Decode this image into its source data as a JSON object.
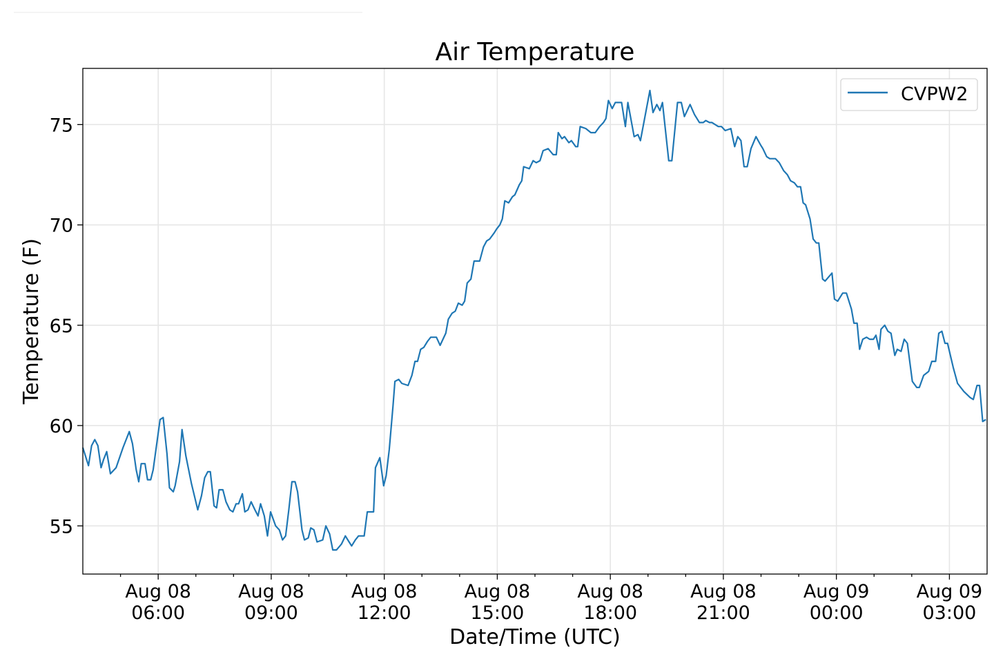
{
  "chart_data": {
    "type": "line",
    "title": "Air Temperature",
    "xlabel": "Date/Time (UTC)",
    "ylabel": "Temperature (F)",
    "x_units": "minutes since Aug 08 04:00 UTC",
    "xlim": [
      0,
      1440
    ],
    "ylim": [
      52.6,
      77.8
    ],
    "grid": true,
    "legend_position": "top-right",
    "x_ticks": [
      {
        "value": 120,
        "line1": "Aug 08",
        "line2": "06:00"
      },
      {
        "value": 300,
        "line1": "Aug 08",
        "line2": "09:00"
      },
      {
        "value": 480,
        "line1": "Aug 08",
        "line2": "12:00"
      },
      {
        "value": 660,
        "line1": "Aug 08",
        "line2": "15:00"
      },
      {
        "value": 840,
        "line1": "Aug 08",
        "line2": "18:00"
      },
      {
        "value": 1020,
        "line1": "Aug 08",
        "line2": "21:00"
      },
      {
        "value": 1200,
        "line1": "Aug 09",
        "line2": "00:00"
      },
      {
        "value": 1380,
        "line1": "Aug 09",
        "line2": "03:00"
      }
    ],
    "y_ticks": [
      {
        "value": 55,
        "label": "55"
      },
      {
        "value": 60,
        "label": "60"
      },
      {
        "value": 65,
        "label": "65"
      },
      {
        "value": 70,
        "label": "70"
      },
      {
        "value": 75,
        "label": "75"
      }
    ],
    "series": [
      {
        "name": "CVPW2",
        "color": "#1f77b4",
        "x": [
          0,
          9,
          14,
          19,
          24,
          29,
          33,
          38,
          44,
          53,
          64,
          74,
          79,
          85,
          89,
          93,
          99,
          103,
          108,
          112,
          123,
          128,
          134,
          138,
          144,
          147,
          154,
          158,
          164,
          173,
          183,
          189,
          194,
          199,
          203,
          209,
          213,
          217,
          223,
          228,
          234,
          239,
          244,
          248,
          254,
          258,
          263,
          268,
          274,
          279,
          283,
          289,
          294,
          299,
          307,
          313,
          318,
          323,
          328,
          333,
          338,
          342,
          349,
          353,
          359,
          363,
          368,
          373,
          382,
          387,
          393,
          398,
          404,
          412,
          418,
          424,
          428,
          434,
          439,
          448,
          453,
          463,
          466,
          473,
          479,
          483,
          488,
          494,
          497,
          503,
          508,
          518,
          524,
          529,
          533,
          538,
          543,
          549,
          554,
          563,
          569,
          578,
          582,
          588,
          593,
          598,
          604,
          608,
          612,
          618,
          623,
          632,
          638,
          643,
          648,
          655,
          659,
          664,
          668,
          672,
          678,
          684,
          688,
          695,
          699,
          702,
          711,
          717,
          722,
          728,
          733,
          741,
          749,
          754,
          757,
          763,
          767,
          774,
          778,
          785,
          788,
          792,
          801,
          809,
          816,
          823,
          829,
          833,
          837,
          843,
          848,
          858,
          864,
          868,
          878,
          884,
          888,
          903,
          908,
          914,
          919,
          923,
          933,
          938,
          947,
          953,
          958,
          967,
          974,
          982,
          988,
          992,
          998,
          1002,
          1012,
          1017,
          1023,
          1032,
          1038,
          1043,
          1048,
          1053,
          1058,
          1064,
          1072,
          1079,
          1083,
          1089,
          1094,
          1103,
          1109,
          1116,
          1122,
          1127,
          1133,
          1138,
          1143,
          1147,
          1151,
          1158,
          1163,
          1168,
          1172,
          1178,
          1182,
          1193,
          1197,
          1202,
          1210,
          1216,
          1224,
          1228,
          1233,
          1237,
          1242,
          1248,
          1253,
          1259,
          1263,
          1268,
          1271,
          1277,
          1282,
          1287,
          1293,
          1297,
          1303,
          1308,
          1313,
          1321,
          1328,
          1332,
          1339,
          1347,
          1352,
          1358,
          1363,
          1368,
          1373,
          1377,
          1386,
          1393,
          1403,
          1413,
          1418,
          1424,
          1428,
          1433,
          1438
        ],
        "y": [
          58.9,
          58.0,
          59.0,
          59.3,
          59.0,
          57.9,
          58.3,
          58.7,
          57.6,
          57.9,
          58.9,
          59.7,
          59.1,
          57.8,
          57.2,
          58.1,
          58.1,
          57.3,
          57.3,
          57.8,
          60.3,
          60.4,
          58.6,
          56.9,
          56.7,
          57.0,
          58.2,
          59.8,
          58.5,
          57.1,
          55.8,
          56.5,
          57.4,
          57.7,
          57.7,
          56.0,
          55.9,
          56.8,
          56.8,
          56.2,
          55.8,
          55.7,
          56.1,
          56.1,
          56.6,
          55.7,
          55.8,
          56.2,
          55.8,
          55.5,
          56.1,
          55.5,
          54.5,
          55.7,
          55.0,
          54.8,
          54.3,
          54.5,
          55.8,
          57.2,
          57.2,
          56.7,
          54.8,
          54.3,
          54.4,
          54.9,
          54.8,
          54.2,
          54.3,
          55.0,
          54.6,
          53.8,
          53.8,
          54.1,
          54.5,
          54.2,
          54.0,
          54.3,
          54.5,
          54.5,
          55.7,
          55.7,
          57.9,
          58.4,
          57.0,
          57.5,
          58.8,
          61.0,
          62.2,
          62.3,
          62.1,
          62.0,
          62.5,
          63.2,
          63.2,
          63.8,
          63.9,
          64.2,
          64.4,
          64.4,
          64.0,
          64.6,
          65.3,
          65.6,
          65.7,
          66.1,
          66.0,
          66.2,
          67.1,
          67.3,
          68.2,
          68.2,
          68.9,
          69.2,
          69.3,
          69.6,
          69.8,
          70.0,
          70.3,
          71.2,
          71.1,
          71.4,
          71.5,
          72.0,
          72.2,
          72.9,
          72.8,
          73.2,
          73.1,
          73.2,
          73.7,
          73.8,
          73.5,
          73.5,
          74.6,
          74.3,
          74.4,
          74.1,
          74.2,
          73.9,
          73.9,
          74.9,
          74.8,
          74.6,
          74.6,
          74.9,
          75.1,
          75.3,
          76.2,
          75.8,
          76.1,
          76.1,
          74.9,
          76.1,
          74.4,
          74.5,
          74.2,
          76.7,
          75.6,
          76.0,
          75.7,
          76.1,
          73.2,
          73.2,
          76.1,
          76.1,
          75.4,
          76.0,
          75.5,
          75.1,
          75.1,
          75.2,
          75.1,
          75.1,
          74.9,
          74.9,
          74.7,
          74.8,
          73.9,
          74.4,
          74.2,
          72.9,
          72.9,
          73.8,
          74.4,
          74.0,
          73.8,
          73.4,
          73.3,
          73.3,
          73.1,
          72.7,
          72.5,
          72.2,
          72.1,
          71.9,
          71.9,
          71.1,
          71.0,
          70.3,
          69.3,
          69.1,
          69.1,
          67.3,
          67.2,
          67.6,
          66.3,
          66.2,
          66.6,
          66.6,
          65.8,
          65.1,
          65.1,
          63.8,
          64.3,
          64.4,
          64.3,
          64.3,
          64.5,
          63.8,
          64.8,
          65.0,
          64.7,
          64.6,
          63.5,
          63.8,
          63.7,
          64.3,
          64.1,
          62.2,
          61.9,
          61.9,
          62.5,
          62.7,
          63.2,
          63.2,
          64.6,
          64.7,
          64.1,
          64.1,
          62.9,
          62.1,
          61.7,
          61.4,
          61.3,
          62.0,
          62.0,
          60.2,
          60.3
        ]
      }
    ]
  }
}
